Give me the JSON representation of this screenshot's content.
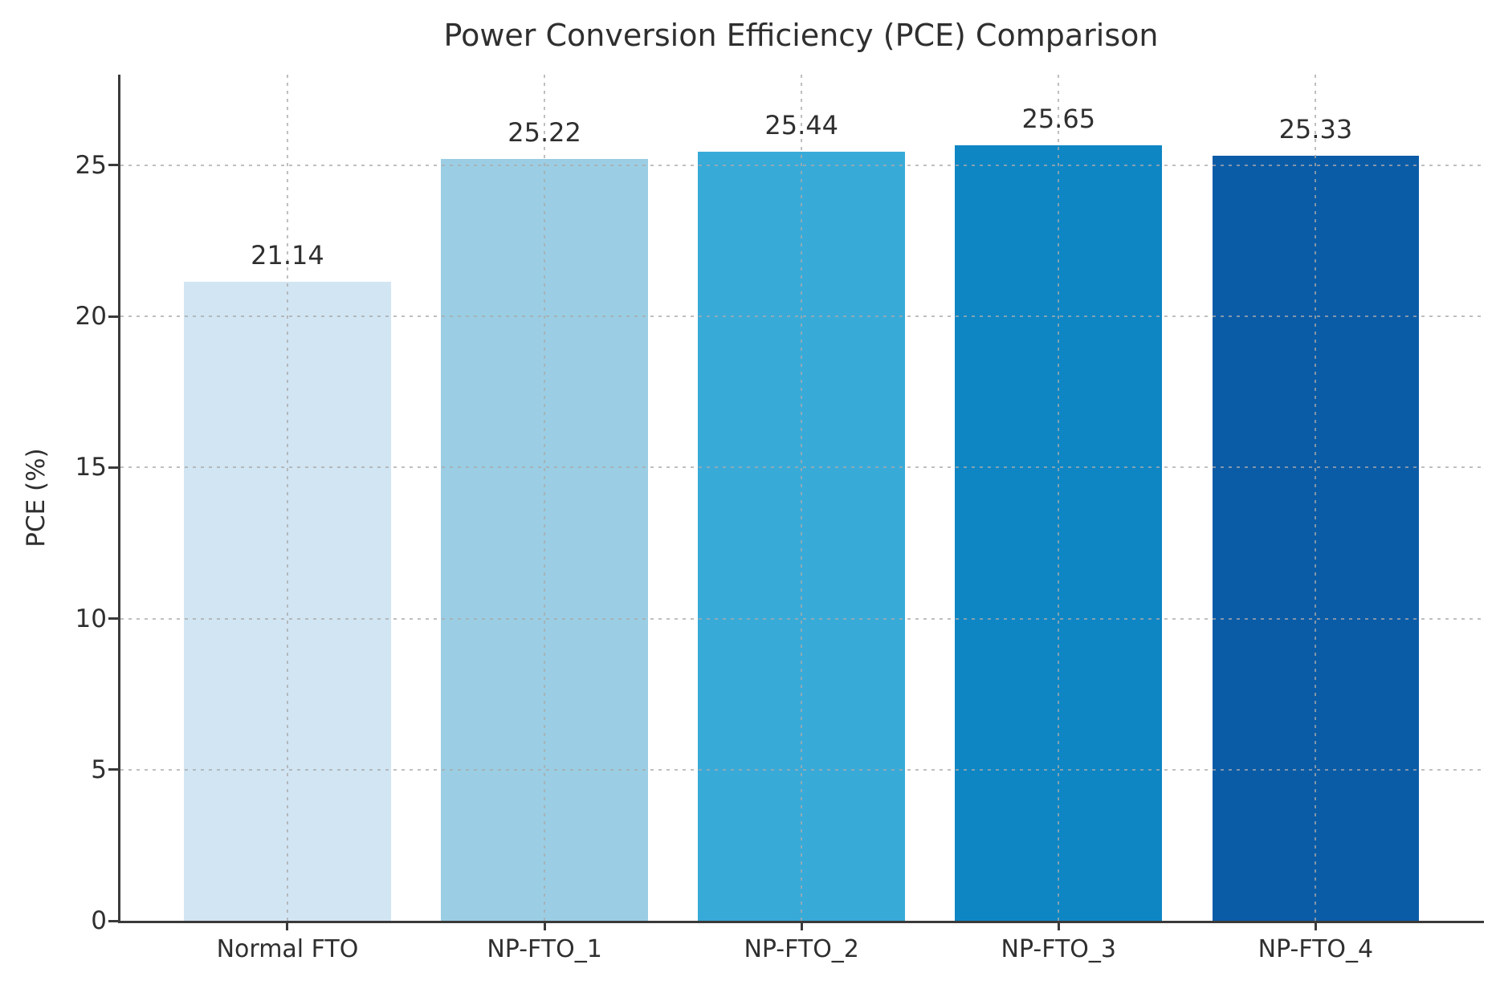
{
  "chart_data": {
    "type": "bar",
    "title": "Power Conversion Efficiency (PCE) Comparison",
    "xlabel": "",
    "ylabel": "PCE (%)",
    "categories": [
      "Normal FTO",
      "NP-FTO_1",
      "NP-FTO_2",
      "NP-FTO_3",
      "NP-FTO_4"
    ],
    "values": [
      21.14,
      25.22,
      25.44,
      25.65,
      25.33
    ],
    "value_labels": [
      "21.14",
      "25.22",
      "25.44",
      "25.65",
      "25.33"
    ],
    "bar_colors": [
      "#d2e5f3",
      "#9bcee4",
      "#38aad8",
      "#0e86c4",
      "#0b5ca7"
    ],
    "yticks": [
      0,
      5,
      10,
      15,
      20,
      25
    ],
    "ylim": [
      0,
      28
    ],
    "grid": "dotted gray, horizontal at yticks and vertical at category centers",
    "legend": "none",
    "background_color": "#ffffff",
    "axis_color": "#3a3a3a",
    "grid_color": "#aaaaaa",
    "text_color": "#2f2f2f"
  }
}
